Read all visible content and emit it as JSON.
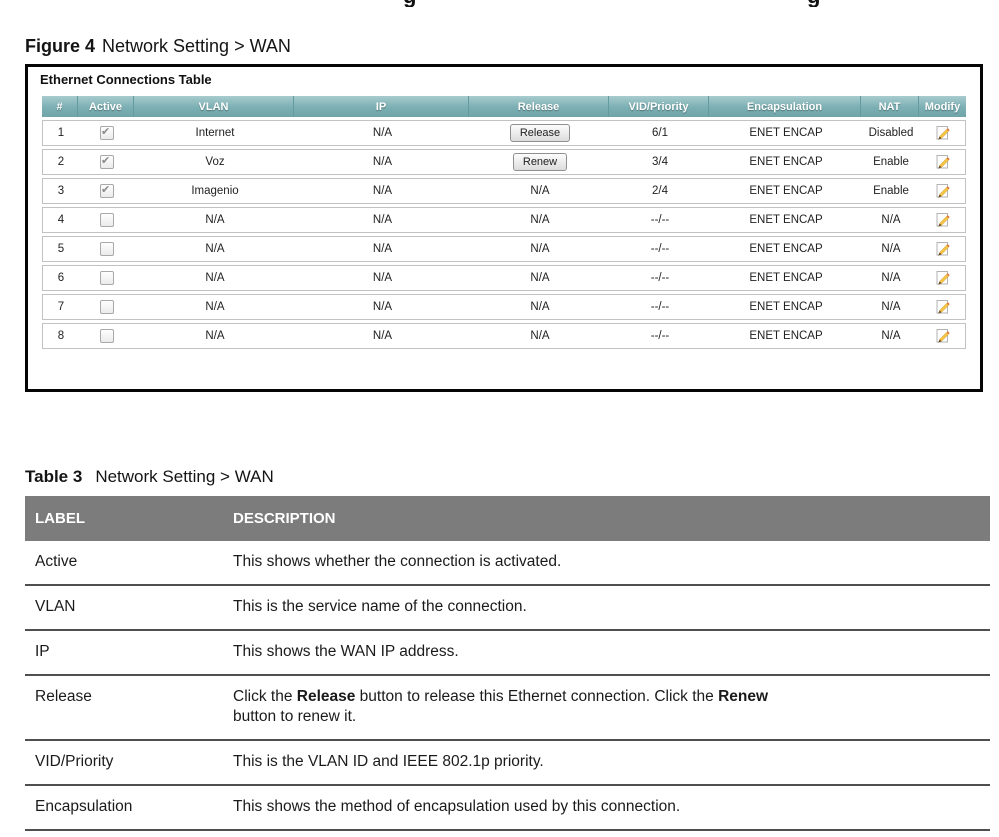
{
  "page": {
    "top_fragments": [
      "g",
      "g"
    ]
  },
  "colors": {
    "figure_header_teal": "#7bafb3",
    "figure_header_teal_light": "#a8cbce",
    "table_header_gray": "#7c7c7c"
  },
  "figure": {
    "label": "Figure 4",
    "title": "Network Setting > WAN",
    "panel_title": "Ethernet Connections Table",
    "table": {
      "columns": [
        "#",
        "Active",
        "VLAN",
        "IP",
        "Release",
        "VID/Priority",
        "Encapsulation",
        "NAT",
        "Modify"
      ],
      "rows": [
        {
          "num": "1",
          "active": true,
          "vlan": "Internet",
          "ip": "N/A",
          "release_type": "button",
          "release_label": "Release",
          "vid_priority": "6/1",
          "encapsulation": "ENET ENCAP",
          "nat": "Disabled"
        },
        {
          "num": "2",
          "active": true,
          "vlan": "Voz",
          "ip": "N/A",
          "release_type": "button",
          "release_label": "Renew",
          "vid_priority": "3/4",
          "encapsulation": "ENET ENCAP",
          "nat": "Enable"
        },
        {
          "num": "3",
          "active": true,
          "vlan": "Imagenio",
          "ip": "N/A",
          "release_type": "text",
          "release_label": "N/A",
          "vid_priority": "2/4",
          "encapsulation": "ENET ENCAP",
          "nat": "Enable"
        },
        {
          "num": "4",
          "active": false,
          "vlan": "N/A",
          "ip": "N/A",
          "release_type": "text",
          "release_label": "N/A",
          "vid_priority": "--/--",
          "encapsulation": "ENET ENCAP",
          "nat": "N/A"
        },
        {
          "num": "5",
          "active": false,
          "vlan": "N/A",
          "ip": "N/A",
          "release_type": "text",
          "release_label": "N/A",
          "vid_priority": "--/--",
          "encapsulation": "ENET ENCAP",
          "nat": "N/A"
        },
        {
          "num": "6",
          "active": false,
          "vlan": "N/A",
          "ip": "N/A",
          "release_type": "text",
          "release_label": "N/A",
          "vid_priority": "--/--",
          "encapsulation": "ENET ENCAP",
          "nat": "N/A"
        },
        {
          "num": "7",
          "active": false,
          "vlan": "N/A",
          "ip": "N/A",
          "release_type": "text",
          "release_label": "N/A",
          "vid_priority": "--/--",
          "encapsulation": "ENET ENCAP",
          "nat": "N/A"
        },
        {
          "num": "8",
          "active": false,
          "vlan": "N/A",
          "ip": "N/A",
          "release_type": "text",
          "release_label": "N/A",
          "vid_priority": "--/--",
          "encapsulation": "ENET ENCAP",
          "nat": "N/A"
        }
      ],
      "modify_icon": "pencil-edit-icon"
    }
  },
  "table3": {
    "label": "Table 3",
    "title": "Network Setting > WAN",
    "columns": [
      "LABEL",
      "DESCRIPTION"
    ],
    "rows": [
      {
        "label": "Active",
        "lines": [
          [
            {
              "t": "This shows whether the connection is activated."
            }
          ]
        ]
      },
      {
        "label": "VLAN",
        "lines": [
          [
            {
              "t": "This is the service name of the connection."
            }
          ]
        ]
      },
      {
        "label": "IP",
        "lines": [
          [
            {
              "t": "This shows the WAN IP address."
            }
          ]
        ]
      },
      {
        "label": "Release",
        "lines": [
          [
            {
              "t": "Click the "
            },
            {
              "t": "Release",
              "b": true
            },
            {
              "t": " button to release this Ethernet connection. Click the "
            },
            {
              "t": "Renew",
              "b": true
            }
          ],
          [
            {
              "t": "button to renew it."
            }
          ]
        ]
      },
      {
        "label": "VID/Priority",
        "lines": [
          [
            {
              "t": "This is the VLAN ID and IEEE 802.1p priority."
            }
          ]
        ]
      },
      {
        "label": "Encapsulation",
        "lines": [
          [
            {
              "t": "This shows the method of encapsulation used by this connection."
            }
          ]
        ]
      }
    ]
  }
}
